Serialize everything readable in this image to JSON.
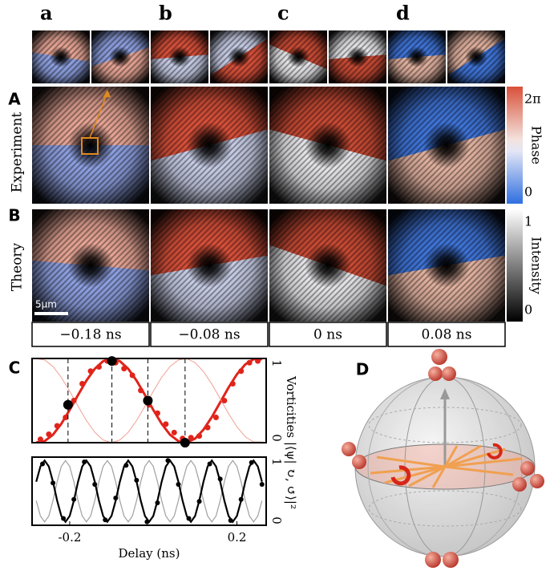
{
  "column_labels": [
    "a",
    "b",
    "c",
    "d"
  ],
  "row_letters": [
    "A",
    "B",
    "C",
    "D"
  ],
  "row_titles": [
    "Experiment",
    "Theory"
  ],
  "colorbar_phase": {
    "label": "Phase",
    "ticks": [
      "2π",
      "0"
    ]
  },
  "colorbar_intensity": {
    "label": "Intensity",
    "ticks": [
      "1",
      "0"
    ]
  },
  "scale_bar": "5μm",
  "delays": [
    "−0.18 ns",
    "−0.08 ns",
    "0 ns",
    "0.08 ns"
  ],
  "chart_data": [
    {
      "type": "line",
      "y_label": "Vorticities |⟨ψ| ↻, ↺⟩|²",
      "x": [
        -0.28,
        -0.26,
        -0.24,
        -0.22,
        -0.2,
        -0.18,
        -0.16,
        -0.14,
        -0.12,
        -0.1,
        -0.08,
        -0.06,
        -0.04,
        -0.02,
        0,
        0.02,
        0.04,
        0.06,
        0.08,
        0.1,
        0.12,
        0.14,
        0.16,
        0.18,
        0.2,
        0.22,
        0.24,
        0.26
      ],
      "xlim": [
        -0.29,
        0.27
      ],
      "ylim": [
        0,
        1
      ],
      "yticks": [
        0,
        1
      ],
      "series": [
        {
          "style": "line",
          "color": "#e0241b",
          "width": 3,
          "values": [
            0.002,
            0.018,
            0.095,
            0.225,
            0.389,
            0.567,
            0.737,
            0.877,
            0.968,
            1,
            0.968,
            0.877,
            0.737,
            0.567,
            0.389,
            0.225,
            0.095,
            0.018,
            0.002,
            0.049,
            0.155,
            0.304,
            0.479,
            0.655,
            0.812,
            0.929,
            0.992,
            0.992
          ]
        },
        {
          "style": "line",
          "color": "#f0a090",
          "width": 1,
          "values": [
            0.998,
            0.982,
            0.905,
            0.775,
            0.611,
            0.433,
            0.263,
            0.123,
            0.032,
            0,
            0.032,
            0.123,
            0.263,
            0.433,
            0.611,
            0.775,
            0.905,
            0.982,
            0.998,
            0.951,
            0.845,
            0.696,
            0.521,
            0.345,
            0.188,
            0.071,
            0.008,
            0.008
          ]
        },
        {
          "style": "points",
          "color": "#e0241b",
          "radius": 3.5,
          "x": [
            -0.27,
            -0.25,
            -0.23,
            -0.21,
            -0.19,
            -0.17,
            -0.15,
            -0.13,
            -0.11,
            -0.09,
            -0.07,
            -0.05,
            -0.03,
            -0.01,
            0.01,
            0.03,
            0.05,
            0.07,
            0.09,
            0.11,
            0.13,
            0.15,
            0.17,
            0.19,
            0.21,
            0.23,
            0.25
          ],
          "values": [
            0.04,
            0.1,
            0.2,
            0.3,
            0.5,
            0.7,
            0.85,
            0.9,
            0.97,
            0.95,
            0.88,
            0.8,
            0.62,
            0.45,
            0.35,
            0.22,
            0.12,
            0.05,
            0.06,
            0.08,
            0.18,
            0.3,
            0.5,
            0.7,
            0.85,
            0.95,
            0.97
          ]
        },
        {
          "style": "points",
          "color": "#000000",
          "radius": 6,
          "dashed_guides": true,
          "x": [
            -0.204,
            -0.099,
            -0.013,
            0.076
          ],
          "values": [
            0.45,
            0.97,
            0.5,
            0
          ]
        }
      ]
    },
    {
      "type": "line",
      "x_label": "Delay (ns)",
      "x": [
        -0.28,
        -0.27,
        -0.26,
        -0.25,
        -0.24,
        -0.23,
        -0.22,
        -0.21,
        -0.2,
        -0.19,
        -0.18,
        -0.17,
        -0.16,
        -0.15,
        -0.14,
        -0.13,
        -0.12,
        -0.11,
        -0.1,
        -0.09,
        -0.08,
        -0.07,
        -0.06,
        -0.05,
        -0.04,
        -0.03,
        -0.02,
        -0.01,
        0,
        0.01,
        0.02,
        0.03,
        0.04,
        0.05,
        0.06,
        0.07,
        0.08,
        0.09,
        0.1,
        0.11,
        0.12,
        0.13,
        0.14,
        0.15,
        0.16,
        0.17,
        0.18,
        0.19,
        0.2,
        0.21,
        0.22,
        0.23,
        0.24,
        0.25,
        0.26
      ],
      "xlim": [
        -0.29,
        0.27
      ],
      "ylim": [
        0,
        1
      ],
      "yticks": [
        0,
        1
      ],
      "xticks": [
        -0.2,
        0.2
      ],
      "series": [
        {
          "style": "line",
          "color": "#a0a0a0",
          "width": 1.2,
          "values": [
            0.361,
            0.136,
            0.05,
            0.136,
            0.361,
            0.639,
            0.864,
            0.95,
            0.864,
            0.639,
            0.361,
            0.136,
            0.05,
            0.136,
            0.361,
            0.639,
            0.864,
            0.95,
            0.864,
            0.639,
            0.361,
            0.136,
            0.05,
            0.136,
            0.361,
            0.639,
            0.864,
            0.95,
            0.864,
            0.639,
            0.361,
            0.136,
            0.05,
            0.136,
            0.361,
            0.639,
            0.864,
            0.95,
            0.864,
            0.639,
            0.361,
            0.136,
            0.05,
            0.136,
            0.361,
            0.639,
            0.864,
            0.95,
            0.864,
            0.639,
            0.361,
            0.136,
            0.05,
            0.136,
            0.361
          ]
        },
        {
          "style": "line",
          "color": "#000000",
          "width": 2.2,
          "values": [
            0.639,
            0.864,
            0.95,
            0.864,
            0.639,
            0.361,
            0.136,
            0.05,
            0.136,
            0.361,
            0.639,
            0.864,
            0.95,
            0.864,
            0.639,
            0.361,
            0.136,
            0.05,
            0.136,
            0.361,
            0.639,
            0.864,
            0.95,
            0.864,
            0.639,
            0.361,
            0.136,
            0.05,
            0.136,
            0.361,
            0.639,
            0.864,
            0.95,
            0.864,
            0.639,
            0.361,
            0.136,
            0.05,
            0.136,
            0.361,
            0.639,
            0.864,
            0.95,
            0.864,
            0.639,
            0.361,
            0.136,
            0.05,
            0.136,
            0.361,
            0.639,
            0.864,
            0.95,
            0.864,
            0.639
          ]
        },
        {
          "style": "points",
          "color": "#000000",
          "radius": 3,
          "x": [
            -0.265,
            -0.24,
            -0.215,
            -0.19,
            -0.165,
            -0.14,
            -0.115,
            -0.09,
            -0.065,
            -0.04,
            -0.015,
            0.01,
            0.035,
            0.06,
            0.085,
            0.11,
            0.135,
            0.16,
            0.185,
            0.21,
            0.235,
            0.26
          ],
          "values": [
            0.9,
            0.62,
            0.1,
            0.38,
            0.93,
            0.6,
            0.08,
            0.4,
            0.88,
            0.66,
            0.05,
            0.33,
            0.95,
            0.6,
            0.1,
            0.35,
            0.9,
            0.68,
            0.07,
            0.38,
            0.92,
            0.6
          ]
        }
      ]
    }
  ]
}
